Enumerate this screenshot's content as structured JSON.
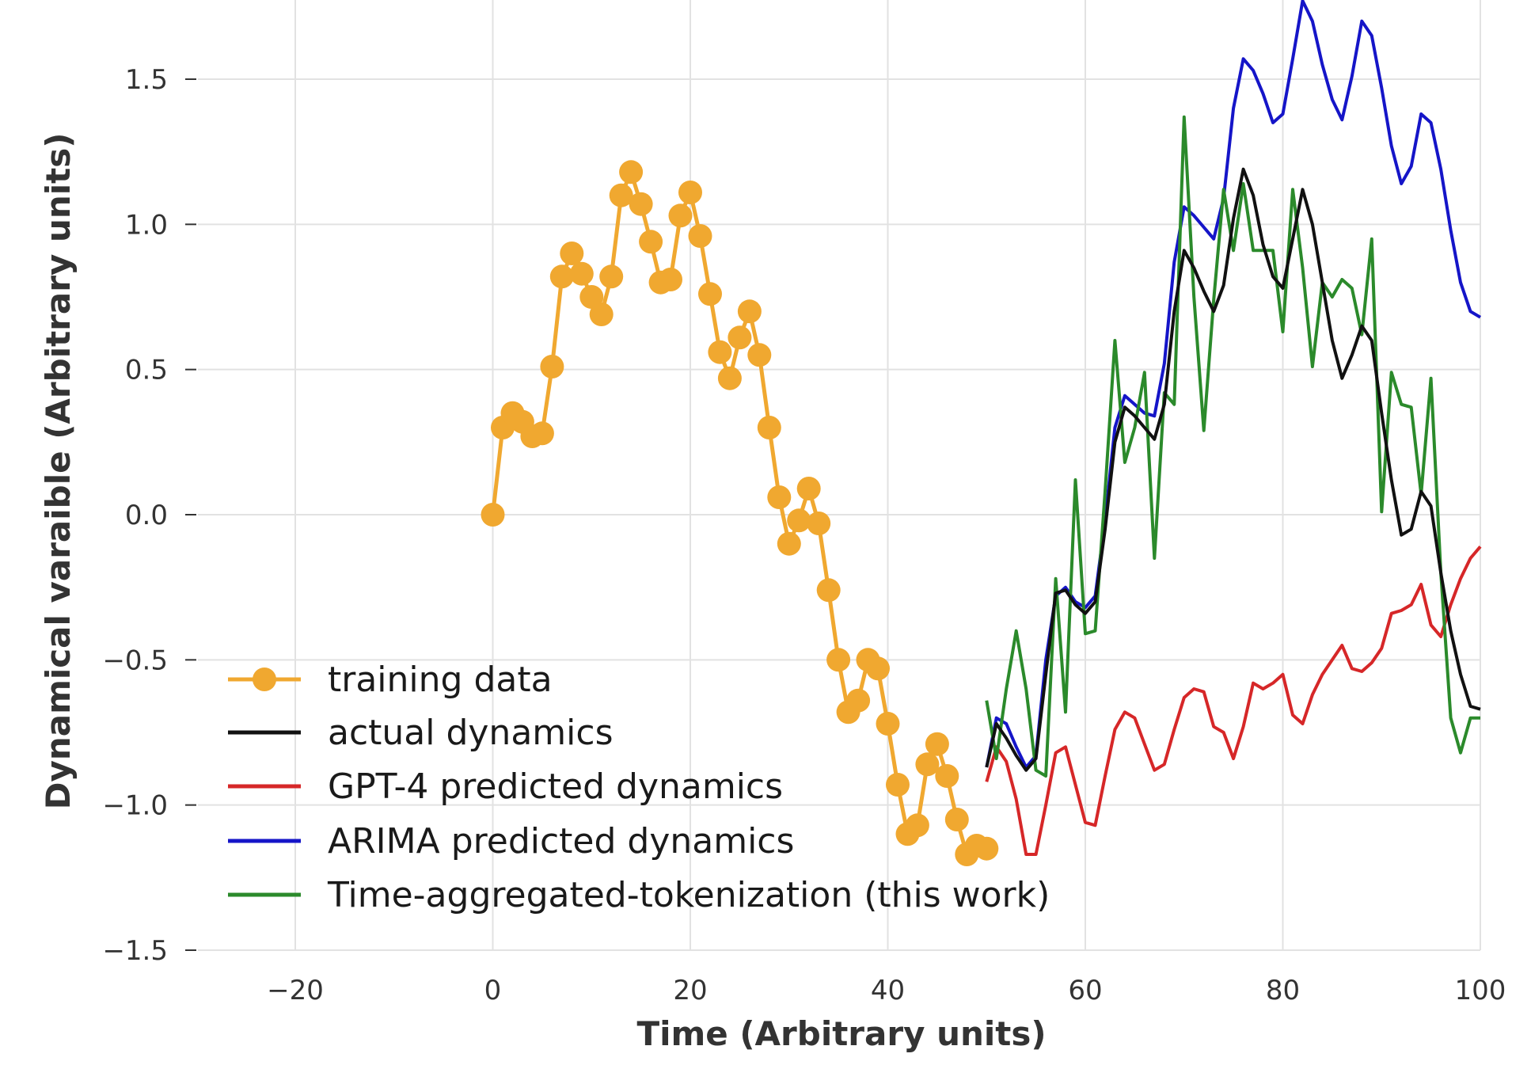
{
  "chart_data": {
    "type": "line",
    "title": "",
    "xlabel": "Time (Arbitrary units)",
    "ylabel": "Dynamical varaible (Arbitrary units)",
    "xlim": [
      -30,
      100
    ],
    "ylim": [
      -1.5,
      1.8
    ],
    "xticks": [
      -20,
      0,
      20,
      40,
      60,
      80,
      100
    ],
    "yticks": [
      -1.5,
      -1.0,
      -0.5,
      0.0,
      0.5,
      1.0,
      1.5
    ],
    "xtick_labels": [
      "−20",
      "0",
      "20",
      "40",
      "60",
      "80",
      "100"
    ],
    "ytick_labels": [
      "−1.5",
      "−1.0",
      "−0.5",
      "0.0",
      "0.5",
      "1.0",
      "1.5"
    ],
    "grid": true,
    "legend_position": "bottom-left",
    "series": [
      {
        "name": "training data",
        "color": "#f0a830",
        "marker": "circle",
        "x": [
          0,
          1,
          2,
          3,
          4,
          5,
          6,
          7,
          8,
          9,
          10,
          11,
          12,
          13,
          14,
          15,
          16,
          17,
          18,
          19,
          20,
          21,
          22,
          23,
          24,
          25,
          26,
          27,
          28,
          29,
          30,
          31,
          32,
          33,
          34,
          35,
          36,
          37,
          38,
          39,
          40,
          41,
          42,
          43,
          44,
          45,
          46,
          47,
          48,
          49,
          50
        ],
        "values": [
          0.0,
          0.3,
          0.35,
          0.32,
          0.27,
          0.28,
          0.51,
          0.82,
          0.9,
          0.83,
          0.75,
          0.69,
          0.82,
          1.1,
          1.18,
          1.07,
          0.94,
          0.8,
          0.81,
          1.03,
          1.11,
          0.96,
          0.76,
          0.56,
          0.47,
          0.61,
          0.7,
          0.55,
          0.3,
          0.06,
          -0.1,
          -0.02,
          0.09,
          -0.03,
          -0.26,
          -0.5,
          -0.68,
          -0.64,
          -0.5,
          -0.53,
          -0.72,
          -0.93,
          -1.1,
          -1.07,
          -0.86,
          -0.79,
          -0.9,
          -1.05,
          -1.17,
          -1.14,
          -1.15
        ]
      },
      {
        "name": "actual dynamics",
        "color": "#111111",
        "x": [
          50,
          51,
          52,
          53,
          54,
          55,
          56,
          57,
          58,
          59,
          60,
          61,
          62,
          63,
          64,
          65,
          66,
          67,
          68,
          69,
          70,
          71,
          72,
          73,
          74,
          75,
          76,
          77,
          78,
          79,
          80,
          81,
          82,
          83,
          84,
          85,
          86,
          87,
          88,
          89,
          90,
          91,
          92,
          93,
          94,
          95,
          96,
          97,
          98,
          99,
          100
        ],
        "values": [
          -0.87,
          -0.72,
          -0.77,
          -0.83,
          -0.88,
          -0.84,
          -0.55,
          -0.27,
          -0.26,
          -0.31,
          -0.34,
          -0.3,
          -0.05,
          0.25,
          0.37,
          0.34,
          0.3,
          0.26,
          0.38,
          0.7,
          0.91,
          0.85,
          0.77,
          0.7,
          0.79,
          1.02,
          1.19,
          1.1,
          0.93,
          0.82,
          0.78,
          0.95,
          1.12,
          1.0,
          0.8,
          0.6,
          0.47,
          0.55,
          0.65,
          0.6,
          0.35,
          0.12,
          -0.07,
          -0.05,
          0.08,
          0.03,
          -0.2,
          -0.4,
          -0.55,
          -0.66,
          -0.67
        ]
      },
      {
        "name": "GPT-4 predicted dynamics",
        "color": "#d62728",
        "x": [
          50,
          51,
          52,
          53,
          54,
          55,
          56,
          57,
          58,
          59,
          60,
          61,
          62,
          63,
          64,
          65,
          66,
          67,
          68,
          69,
          70,
          71,
          72,
          73,
          74,
          75,
          76,
          77,
          78,
          79,
          80,
          81,
          82,
          83,
          84,
          85,
          86,
          87,
          88,
          89,
          90,
          91,
          92,
          93,
          94,
          95,
          96,
          97,
          98,
          99,
          100
        ],
        "values": [
          -0.92,
          -0.8,
          -0.85,
          -0.98,
          -1.17,
          -1.17,
          -1.0,
          -0.82,
          -0.8,
          -0.93,
          -1.06,
          -1.07,
          -0.9,
          -0.74,
          -0.68,
          -0.7,
          -0.79,
          -0.88,
          -0.86,
          -0.74,
          -0.63,
          -0.6,
          -0.61,
          -0.73,
          -0.75,
          -0.84,
          -0.73,
          -0.58,
          -0.6,
          -0.58,
          -0.55,
          -0.69,
          -0.72,
          -0.62,
          -0.55,
          -0.5,
          -0.45,
          -0.53,
          -0.54,
          -0.51,
          -0.46,
          -0.34,
          -0.33,
          -0.31,
          -0.24,
          -0.38,
          -0.42,
          -0.31,
          -0.22,
          -0.15,
          -0.11
        ]
      },
      {
        "name": "ARIMA predicted dynamics",
        "color": "#1515c8",
        "x": [
          50,
          51,
          52,
          53,
          54,
          55,
          56,
          57,
          58,
          59,
          60,
          61,
          62,
          63,
          64,
          65,
          66,
          67,
          68,
          69,
          70,
          71,
          72,
          73,
          74,
          75,
          76,
          77,
          78,
          79,
          80,
          81,
          82,
          83,
          84,
          85,
          86,
          87,
          88,
          89,
          90,
          91,
          92,
          93,
          94,
          95,
          96,
          97,
          98,
          99,
          100
        ],
        "values": [
          -0.87,
          -0.7,
          -0.72,
          -0.8,
          -0.87,
          -0.83,
          -0.5,
          -0.28,
          -0.25,
          -0.3,
          -0.32,
          -0.28,
          -0.02,
          0.3,
          0.41,
          0.38,
          0.35,
          0.34,
          0.52,
          0.87,
          1.06,
          1.03,
          0.99,
          0.95,
          1.09,
          1.4,
          1.57,
          1.53,
          1.45,
          1.35,
          1.38,
          1.57,
          1.77,
          1.7,
          1.55,
          1.43,
          1.36,
          1.51,
          1.7,
          1.65,
          1.47,
          1.27,
          1.14,
          1.2,
          1.38,
          1.35,
          1.19,
          0.98,
          0.8,
          0.7,
          0.68
        ]
      },
      {
        "name": "Time-aggregated-tokenization (this work)",
        "color": "#2b8a2b",
        "x": [
          50,
          51,
          52,
          53,
          54,
          55,
          56,
          57,
          58,
          59,
          60,
          61,
          62,
          63,
          64,
          65,
          66,
          67,
          68,
          69,
          70,
          71,
          72,
          73,
          74,
          75,
          76,
          77,
          78,
          79,
          80,
          81,
          82,
          83,
          84,
          85,
          86,
          87,
          88,
          89,
          90,
          91,
          92,
          93,
          94,
          95,
          96,
          97,
          98,
          99,
          100
        ],
        "values": [
          -0.64,
          -0.84,
          -0.6,
          -0.4,
          -0.6,
          -0.88,
          -0.9,
          -0.22,
          -0.68,
          0.12,
          -0.41,
          -0.4,
          0.08,
          0.6,
          0.18,
          0.3,
          0.49,
          -0.15,
          0.42,
          0.38,
          1.37,
          0.75,
          0.29,
          0.74,
          1.12,
          0.91,
          1.14,
          0.91,
          0.91,
          0.91,
          0.63,
          1.12,
          0.85,
          0.51,
          0.8,
          0.75,
          0.81,
          0.78,
          0.62,
          0.95,
          0.01,
          0.49,
          0.38,
          0.37,
          0.07,
          0.47,
          -0.2,
          -0.7,
          -0.82,
          -0.7,
          -0.7
        ]
      }
    ]
  }
}
